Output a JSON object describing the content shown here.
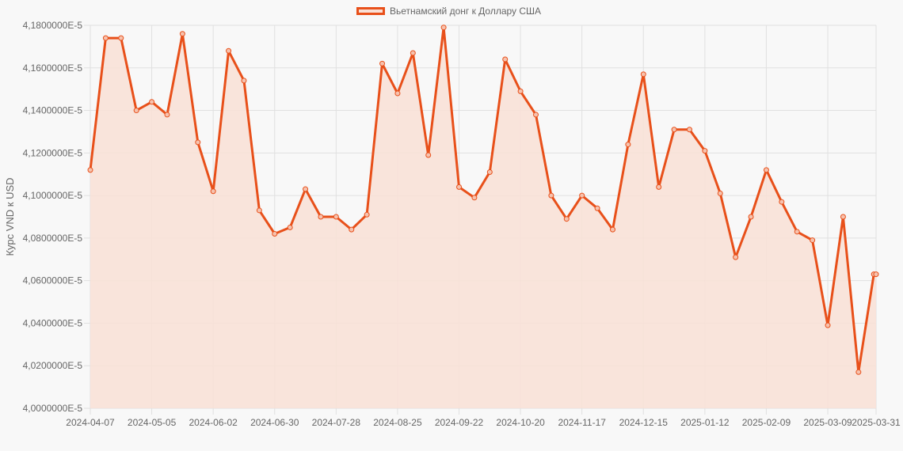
{
  "legend": {
    "label": "Вьетнамский донг к Доллару США",
    "color": "#e8501a",
    "fill": "#f9e0d6"
  },
  "axes": {
    "ylabel": "Курс VND к USD",
    "y_ticks": [
      "4,1800000E-5",
      "4,1600000E-5",
      "4,1400000E-5",
      "4,1200000E-5",
      "4,1000000E-5",
      "4,0800000E-5",
      "4,0600000E-5",
      "4,0400000E-5",
      "4,0200000E-5",
      "4,0000000E-5"
    ],
    "x_ticks": [
      "2024-04-07",
      "2024-05-05",
      "2024-06-02",
      "2024-06-30",
      "2024-07-28",
      "2024-08-25",
      "2024-09-22",
      "2024-10-20",
      "2024-11-17",
      "2024-12-15",
      "2025-01-12",
      "2025-02-09",
      "2025-03-09",
      "2025-03-31"
    ]
  },
  "chart_data": {
    "type": "area",
    "title": "",
    "xlabel": "",
    "ylabel": "Курс VND к USD",
    "ylim": [
      4e-05,
      4.18e-05
    ],
    "y_unit_note": "values in units of 1E-5",
    "grid": true,
    "legend_position": "top",
    "series": [
      {
        "name": "Вьетнамский донг к Доллару США",
        "color": "#e8501a",
        "x": [
          "2024-04-07",
          "2024-04-14",
          "2024-04-21",
          "2024-04-28",
          "2024-05-05",
          "2024-05-12",
          "2024-05-19",
          "2024-05-26",
          "2024-06-02",
          "2024-06-09",
          "2024-06-16",
          "2024-06-23",
          "2024-06-30",
          "2024-07-07",
          "2024-07-14",
          "2024-07-21",
          "2024-07-28",
          "2024-08-04",
          "2024-08-11",
          "2024-08-18",
          "2024-08-25",
          "2024-09-01",
          "2024-09-08",
          "2024-09-15",
          "2024-09-22",
          "2024-09-29",
          "2024-10-06",
          "2024-10-13",
          "2024-10-20",
          "2024-10-27",
          "2024-11-03",
          "2024-11-10",
          "2024-11-17",
          "2024-11-24",
          "2024-12-01",
          "2024-12-08",
          "2024-12-15",
          "2024-12-22",
          "2024-12-29",
          "2025-01-05",
          "2025-01-12",
          "2025-01-19",
          "2025-01-26",
          "2025-02-02",
          "2025-02-09",
          "2025-02-16",
          "2025-02-23",
          "2025-03-02",
          "2025-03-09",
          "2025-03-16",
          "2025-03-23",
          "2025-03-30",
          "2025-03-31"
        ],
        "values": [
          4.112,
          4.174,
          4.174,
          4.14,
          4.144,
          4.138,
          4.176,
          4.125,
          4.102,
          4.168,
          4.154,
          4.093,
          4.082,
          4.085,
          4.103,
          4.09,
          4.09,
          4.084,
          4.091,
          4.162,
          4.148,
          4.167,
          4.119,
          4.179,
          4.104,
          4.099,
          4.111,
          4.164,
          4.149,
          4.138,
          4.1,
          4.089,
          4.1,
          4.094,
          4.084,
          4.124,
          4.157,
          4.104,
          4.131,
          4.131,
          4.121,
          4.101,
          4.071,
          4.09,
          4.112,
          4.097,
          4.083,
          4.079,
          4.039,
          4.09,
          4.017,
          4.063,
          4.063
        ]
      }
    ]
  }
}
